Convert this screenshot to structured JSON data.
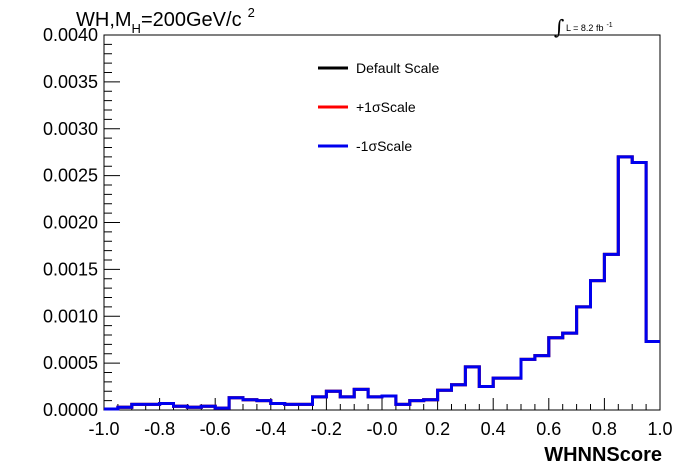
{
  "chart_data": {
    "type": "line",
    "title": "WH,M",
    "title_sub": "H",
    "title_rest": "=200GeV/c",
    "title_sup": "2",
    "lumi_label": "L = 8.2 fb",
    "lumi_sup": "-1",
    "xlabel": "WHNNScore",
    "xlim": [
      -1.0,
      1.0
    ],
    "ylim": [
      0.0,
      0.004
    ],
    "x_ticks": [
      "-1.0",
      "-0.8",
      "-0.6",
      "-0.4",
      "-0.2",
      "-0.0",
      "0.2",
      "0.4",
      "0.6",
      "0.8",
      "1.0"
    ],
    "y_ticks": [
      "0.0000",
      "0.0005",
      "0.0010",
      "0.0015",
      "0.0020",
      "0.0025",
      "0.0030",
      "0.0035",
      "0.0040"
    ],
    "legend_position": "top-center",
    "bin_edges": [
      -1.0,
      -0.95,
      -0.9,
      -0.85,
      -0.8,
      -0.75,
      -0.7,
      -0.65,
      -0.6,
      -0.55,
      -0.5,
      -0.45,
      -0.4,
      -0.35,
      -0.3,
      -0.25,
      -0.2,
      -0.15,
      -0.1,
      -0.05,
      0.0,
      0.05,
      0.1,
      0.15,
      0.2,
      0.25,
      0.3,
      0.35,
      0.4,
      0.45,
      0.5,
      0.55,
      0.6,
      0.65,
      0.7,
      0.75,
      0.8,
      0.85,
      0.9,
      0.95,
      1.0
    ],
    "series": [
      {
        "name": "Default Scale",
        "color": "#000000",
        "values": [
          1e-05,
          3e-05,
          6e-05,
          6e-05,
          7e-05,
          4e-05,
          3e-05,
          4e-05,
          2e-05,
          0.00013,
          0.00011,
          0.0001,
          7e-05,
          6e-05,
          6e-05,
          0.00014,
          0.0002,
          0.00014,
          0.00022,
          0.00014,
          0.00015,
          6e-05,
          0.0001,
          0.00011,
          0.00021,
          0.00027,
          0.00046,
          0.00025,
          0.00034,
          0.00034,
          0.00054,
          0.00058,
          0.00077,
          0.00082,
          0.0011,
          0.00138,
          0.00166,
          0.0027,
          0.00264,
          0.00073
        ]
      },
      {
        "name": "+1σScale",
        "color": "#ff0000",
        "values": [
          1e-05,
          3e-05,
          6e-05,
          6e-05,
          7e-05,
          4e-05,
          3e-05,
          4e-05,
          2e-05,
          0.00013,
          0.00011,
          0.0001,
          7e-05,
          6e-05,
          6e-05,
          0.00014,
          0.0002,
          0.00014,
          0.00022,
          0.00014,
          0.00015,
          6e-05,
          0.0001,
          0.00011,
          0.00021,
          0.00027,
          0.00046,
          0.00025,
          0.00034,
          0.00034,
          0.00054,
          0.00058,
          0.00077,
          0.00082,
          0.0011,
          0.00138,
          0.00166,
          0.0027,
          0.00264,
          0.00073
        ]
      },
      {
        "name": "-1σScale",
        "color": "#0000ee",
        "values": [
          1e-05,
          3e-05,
          6e-05,
          6e-05,
          7e-05,
          4e-05,
          3e-05,
          4e-05,
          2e-05,
          0.00013,
          0.00011,
          0.0001,
          7e-05,
          6e-05,
          6e-05,
          0.00014,
          0.0002,
          0.00014,
          0.00022,
          0.00014,
          0.00015,
          6e-05,
          0.0001,
          0.00011,
          0.00021,
          0.00027,
          0.00046,
          0.00025,
          0.00034,
          0.00034,
          0.00054,
          0.00058,
          0.00077,
          0.00082,
          0.0011,
          0.00138,
          0.00166,
          0.0027,
          0.00264,
          0.00073
        ]
      }
    ]
  }
}
